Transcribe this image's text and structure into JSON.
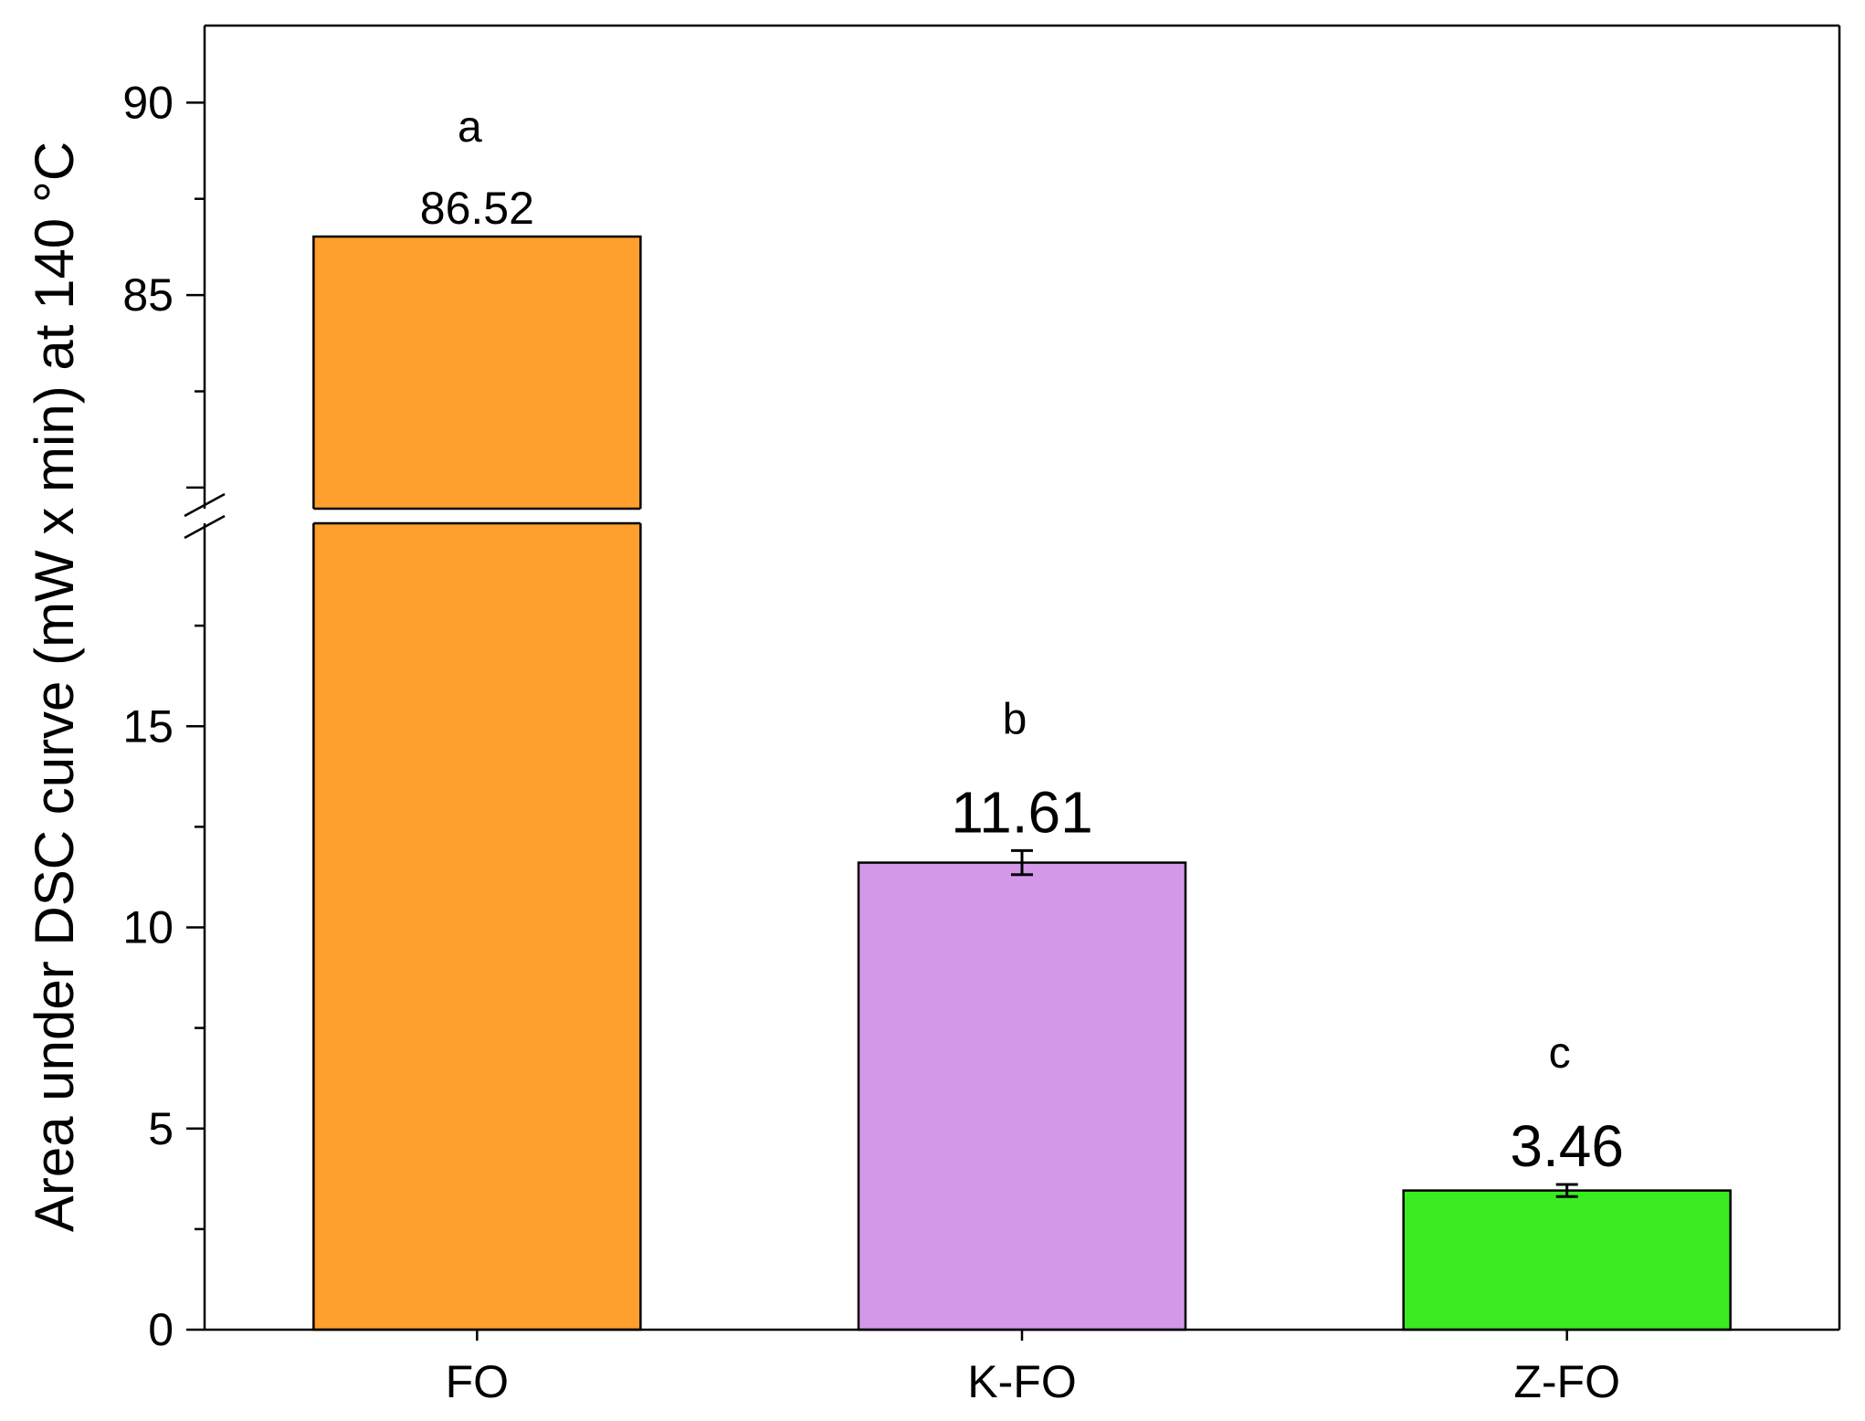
{
  "chart_data": {
    "type": "bar",
    "title": "",
    "xlabel": "",
    "ylabel": "Area under DSC curve (mW x min) at 140 °C",
    "categories": [
      "FO",
      "K-FO",
      "Z-FO"
    ],
    "values": [
      86.52,
      11.61,
      3.46
    ],
    "errors": [
      0,
      0.3,
      0.15
    ],
    "value_labels": [
      "86.52",
      "11.61",
      "3.46"
    ],
    "significance_letters": [
      "a",
      "b",
      "c"
    ],
    "colors": [
      "#FF9F2E",
      "#D498E8",
      "#3BEB22"
    ],
    "axis_break": {
      "lower": [
        0,
        20
      ],
      "upper": [
        79.5,
        92
      ]
    },
    "lower_ticks": [
      "0",
      "5",
      "10",
      "15"
    ],
    "upper_ticks": [
      "85",
      "90"
    ],
    "grid": false,
    "legend": "none"
  }
}
